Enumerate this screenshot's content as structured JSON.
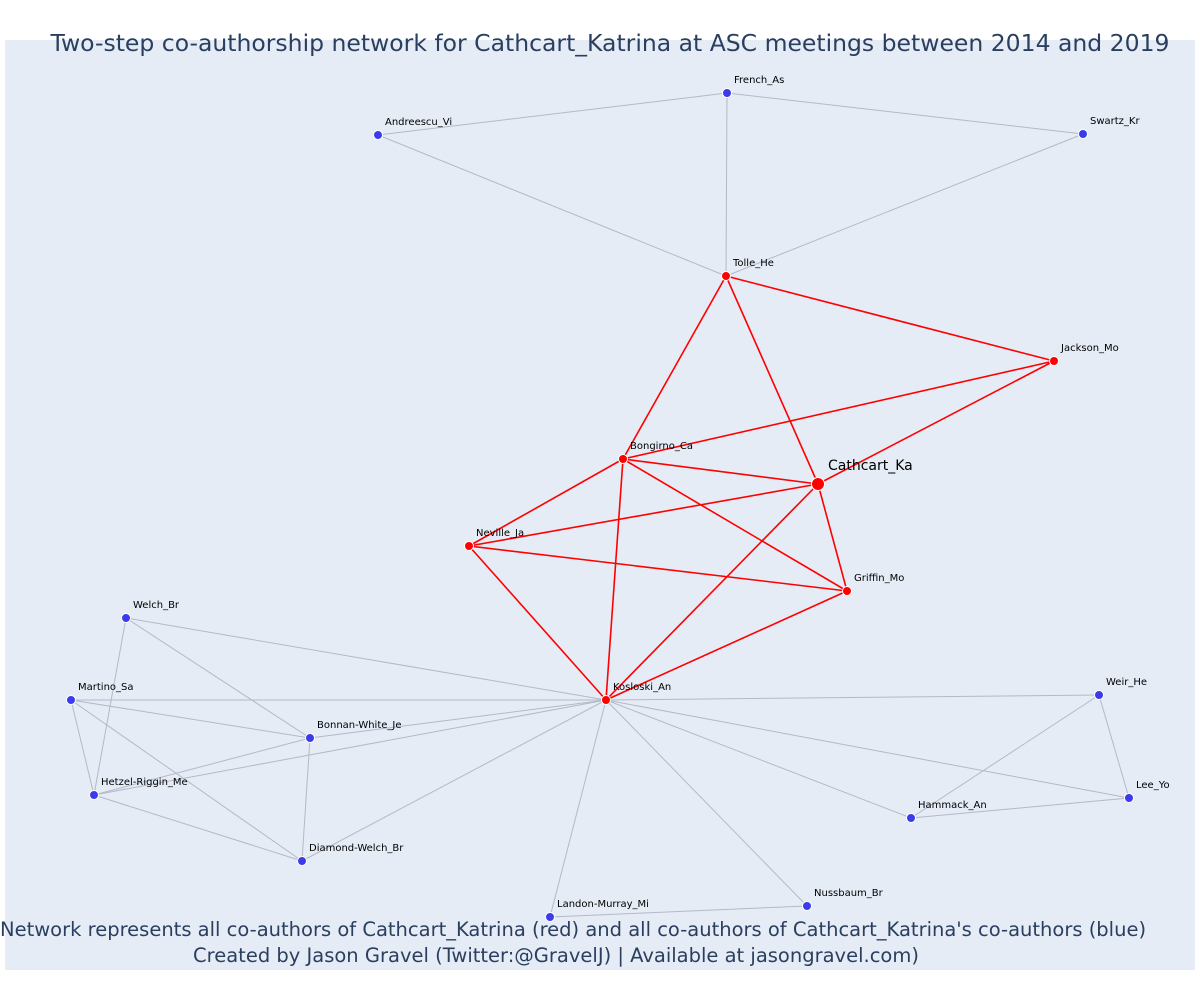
{
  "title": "Two-step co-authorship network for Cathcart_Katrina at ASC meetings between 2014 and 2019",
  "caption": {
    "line1": "Network represents all co-authors of Cathcart_Katrina (red) and all co-authors of Cathcart_Katrina's co-authors (blue)",
    "line2": "Created by Jason Gravel (Twitter:@GravelJ) | Available at jasongravel.com)"
  },
  "colors": {
    "background": "#e5ecf6",
    "first_degree": "#ff0000",
    "second_degree": "#3b3bec",
    "edge_first": "#ff0000",
    "edge_second": "#b5b8c8",
    "text": "#2a3f5f"
  },
  "chart_data": {
    "type": "network",
    "focal": "Cathcart_Ka",
    "nodes": [
      {
        "id": "Cathcart_Ka",
        "label": "Cathcart_Ka",
        "group": "focal"
      },
      {
        "id": "Tolle_He",
        "label": "Tolle_He",
        "group": "coauthor"
      },
      {
        "id": "Jackson_Mo",
        "label": "Jackson_Mo",
        "group": "coauthor"
      },
      {
        "id": "Bongirno_Ca",
        "label": "Bongirno_Ca",
        "group": "coauthor"
      },
      {
        "id": "Neville_Ja",
        "label": "Neville_Ja",
        "group": "coauthor"
      },
      {
        "id": "Griffin_Mo",
        "label": "Griffin_Mo",
        "group": "coauthor"
      },
      {
        "id": "Kosloski_An",
        "label": "Kosloski_An",
        "group": "coauthor"
      },
      {
        "id": "French_As",
        "label": "French_As",
        "group": "second"
      },
      {
        "id": "Andreescu_Vi",
        "label": "Andreescu_Vi",
        "group": "second"
      },
      {
        "id": "Swartz_Kr",
        "label": "Swartz_Kr",
        "group": "second"
      },
      {
        "id": "Welch_Br",
        "label": "Welch_Br",
        "group": "second"
      },
      {
        "id": "Martino_Sa",
        "label": "Martino_Sa",
        "group": "second"
      },
      {
        "id": "Bonnan-White_Je",
        "label": "Bonnan-White_Je",
        "group": "second"
      },
      {
        "id": "Hetzel-Riggin_Me",
        "label": "Hetzel-Riggin_Me",
        "group": "second"
      },
      {
        "id": "Diamond-Welch_Br",
        "label": "Diamond-Welch_Br",
        "group": "second"
      },
      {
        "id": "Landon-Murray_Mi",
        "label": "Landon-Murray_Mi",
        "group": "second"
      },
      {
        "id": "Nussbaum_Br",
        "label": "Nussbaum_Br",
        "group": "second"
      },
      {
        "id": "Weir_He",
        "label": "Weir_He",
        "group": "second"
      },
      {
        "id": "Lee_Yo",
        "label": "Lee_Yo",
        "group": "second"
      },
      {
        "id": "Hammack_An",
        "label": "Hammack_An",
        "group": "second"
      }
    ],
    "edges": [
      {
        "source": "Tolle_He",
        "target": "Jackson_Mo",
        "type": "first"
      },
      {
        "source": "Tolle_He",
        "target": "Bongirno_Ca",
        "type": "first"
      },
      {
        "source": "Tolle_He",
        "target": "Cathcart_Ka",
        "type": "first"
      },
      {
        "source": "Jackson_Mo",
        "target": "Bongirno_Ca",
        "type": "first"
      },
      {
        "source": "Jackson_Mo",
        "target": "Cathcart_Ka",
        "type": "first"
      },
      {
        "source": "Bongirno_Ca",
        "target": "Cathcart_Ka",
        "type": "first"
      },
      {
        "source": "Bongirno_Ca",
        "target": "Neville_Ja",
        "type": "first"
      },
      {
        "source": "Bongirno_Ca",
        "target": "Griffin_Mo",
        "type": "first"
      },
      {
        "source": "Bongirno_Ca",
        "target": "Kosloski_An",
        "type": "first"
      },
      {
        "source": "Neville_Ja",
        "target": "Cathcart_Ka",
        "type": "first"
      },
      {
        "source": "Neville_Ja",
        "target": "Griffin_Mo",
        "type": "first"
      },
      {
        "source": "Neville_Ja",
        "target": "Kosloski_An",
        "type": "first"
      },
      {
        "source": "Cathcart_Ka",
        "target": "Griffin_Mo",
        "type": "first"
      },
      {
        "source": "Cathcart_Ka",
        "target": "Kosloski_An",
        "type": "first"
      },
      {
        "source": "Griffin_Mo",
        "target": "Kosloski_An",
        "type": "first"
      },
      {
        "source": "French_As",
        "target": "Andreescu_Vi",
        "type": "second"
      },
      {
        "source": "French_As",
        "target": "Swartz_Kr",
        "type": "second"
      },
      {
        "source": "French_As",
        "target": "Tolle_He",
        "type": "second"
      },
      {
        "source": "Andreescu_Vi",
        "target": "Tolle_He",
        "type": "second"
      },
      {
        "source": "Swartz_Kr",
        "target": "Tolle_He",
        "type": "second"
      },
      {
        "source": "Welch_Br",
        "target": "Kosloski_An",
        "type": "second"
      },
      {
        "source": "Welch_Br",
        "target": "Bonnan-White_Je",
        "type": "second"
      },
      {
        "source": "Welch_Br",
        "target": "Hetzel-Riggin_Me",
        "type": "second"
      },
      {
        "source": "Martino_Sa",
        "target": "Kosloski_An",
        "type": "second"
      },
      {
        "source": "Martino_Sa",
        "target": "Bonnan-White_Je",
        "type": "second"
      },
      {
        "source": "Martino_Sa",
        "target": "Hetzel-Riggin_Me",
        "type": "second"
      },
      {
        "source": "Martino_Sa",
        "target": "Diamond-Welch_Br",
        "type": "second"
      },
      {
        "source": "Bonnan-White_Je",
        "target": "Kosloski_An",
        "type": "second"
      },
      {
        "source": "Bonnan-White_Je",
        "target": "Hetzel-Riggin_Me",
        "type": "second"
      },
      {
        "source": "Bonnan-White_Je",
        "target": "Diamond-Welch_Br",
        "type": "second"
      },
      {
        "source": "Hetzel-Riggin_Me",
        "target": "Kosloski_An",
        "type": "second"
      },
      {
        "source": "Hetzel-Riggin_Me",
        "target": "Diamond-Welch_Br",
        "type": "second"
      },
      {
        "source": "Diamond-Welch_Br",
        "target": "Kosloski_An",
        "type": "second"
      },
      {
        "source": "Landon-Murray_Mi",
        "target": "Kosloski_An",
        "type": "second"
      },
      {
        "source": "Landon-Murray_Mi",
        "target": "Nussbaum_Br",
        "type": "second"
      },
      {
        "source": "Nussbaum_Br",
        "target": "Kosloski_An",
        "type": "second"
      },
      {
        "source": "Weir_He",
        "target": "Kosloski_An",
        "type": "second"
      },
      {
        "source": "Weir_He",
        "target": "Lee_Yo",
        "type": "second"
      },
      {
        "source": "Weir_He",
        "target": "Hammack_An",
        "type": "second"
      },
      {
        "source": "Lee_Yo",
        "target": "Kosloski_An",
        "type": "second"
      },
      {
        "source": "Lee_Yo",
        "target": "Hammack_An",
        "type": "second"
      },
      {
        "source": "Hammack_An",
        "target": "Kosloski_An",
        "type": "second"
      }
    ]
  }
}
